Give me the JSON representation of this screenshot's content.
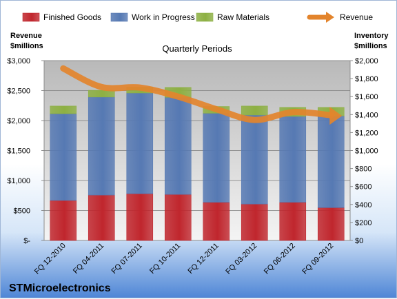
{
  "chart_data": {
    "type": "bar",
    "stacked": true,
    "title": "Quarterly Periods",
    "company": "STMicroelectronics",
    "categories": [
      "FQ 12-2010",
      "FQ 04-2011",
      "FQ 07-2011",
      "FQ 10-2011",
      "FQ 12-2011",
      "FQ 03-2012",
      "FQ 06-2012",
      "FQ 09-2012"
    ],
    "left_axis": {
      "label_line1": "Revenue",
      "label_line2": "$millions",
      "ylim": [
        0,
        3000
      ],
      "ticks": [
        0,
        500,
        1000,
        1500,
        2000,
        2500,
        3000
      ],
      "tick_labels": [
        "$-",
        "$500",
        "$1,000",
        "$1,500",
        "$2,000",
        "$2,500",
        "$3,000"
      ]
    },
    "right_axis": {
      "label_line1": "Inventory",
      "label_line2": "$millions",
      "ylim": [
        0,
        2000
      ],
      "ticks": [
        0,
        200,
        400,
        600,
        800,
        1000,
        1200,
        1400,
        1600,
        1800,
        2000
      ],
      "tick_labels": [
        "$0",
        "$200",
        "$400",
        "$600",
        "$800",
        "$1,000",
        "$1,200",
        "$1,400",
        "$1,600",
        "$1,800",
        "$2,000"
      ]
    },
    "series": [
      {
        "name": "Finished Goods",
        "axis": "right",
        "color": "#c0262d",
        "values": [
          445,
          505,
          520,
          512,
          425,
          405,
          425,
          365
        ]
      },
      {
        "name": "Work in Progress",
        "axis": "right",
        "color": "#5679b3",
        "values": [
          965,
          1090,
          1120,
          1080,
          990,
          990,
          955,
          1020
        ]
      },
      {
        "name": "Raw Materials",
        "axis": "right",
        "color": "#8db043",
        "values": [
          85,
          75,
          65,
          110,
          75,
          100,
          100,
          95
        ]
      },
      {
        "name": "Revenue",
        "axis": "left",
        "type": "line",
        "color": "#e3842c",
        "values": [
          2870,
          2560,
          2550,
          2400,
          2190,
          2010,
          2140,
          2090
        ]
      }
    ],
    "legend_position": "top",
    "grid": true
  }
}
